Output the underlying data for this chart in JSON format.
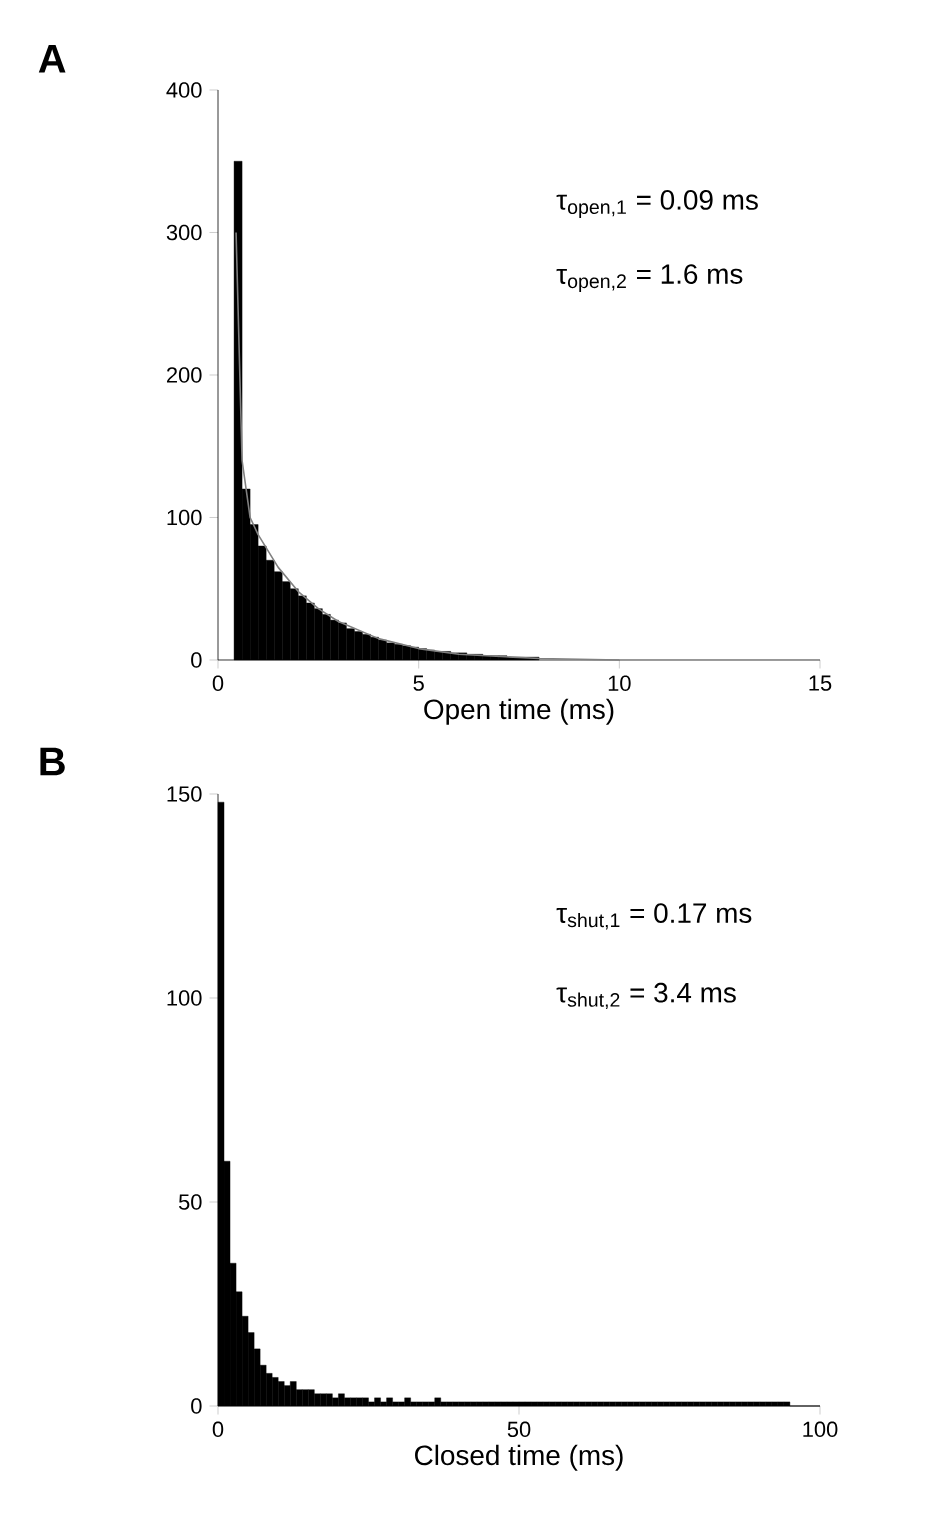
{
  "chart_data": [
    {
      "type": "histogram",
      "xlabel": "Open time (ms)",
      "xlim": [
        0,
        15
      ],
      "xticks": [
        0,
        5,
        10,
        15
      ],
      "ylim": [
        0,
        400
      ],
      "yticks": [
        0,
        100,
        200,
        300,
        400
      ],
      "annotations": [
        "A",
        "τ$_{open,1}$ = 0.09 ms",
        "τ$_{open,2}$ = 1.6 ms"
      ],
      "color": "#000000",
      "bins": [
        0.4,
        0.6,
        0.8,
        1.0,
        1.2,
        1.4,
        1.6,
        1.8,
        2.0,
        2.2,
        2.4,
        2.6,
        2.8,
        3.0,
        3.2,
        3.4,
        3.6,
        3.8,
        4.0,
        4.2,
        4.4,
        4.6,
        4.8,
        5.0,
        5.2,
        5.4,
        5.6,
        5.8,
        6.0,
        6.2,
        6.4,
        6.6,
        6.8,
        7.0,
        7.2,
        7.4,
        7.6,
        7.8,
        8.0
      ],
      "values": [
        350,
        120,
        95,
        80,
        70,
        62,
        55,
        50,
        45,
        40,
        36,
        32,
        28,
        26,
        22,
        20,
        18,
        16,
        14,
        12,
        11,
        10,
        9,
        8,
        7,
        6,
        6,
        5,
        5,
        4,
        4,
        3,
        3,
        3,
        2,
        2,
        2,
        2
      ],
      "series": [
        {
          "type": "line",
          "color": "#808080",
          "x": [
            0.45,
            0.6,
            0.8,
            1.0,
            1.5,
            2.0,
            2.5,
            3.0,
            4.0,
            5.0,
            6.0,
            8.0,
            10.0
          ],
          "values": [
            300,
            140,
            100,
            88,
            65,
            48,
            36,
            27,
            15,
            8,
            4,
            1,
            0
          ]
        }
      ]
    },
    {
      "type": "histogram",
      "xlabel": "Closed time (ms)",
      "xlim": [
        0,
        100
      ],
      "xticks": [
        0,
        50,
        100
      ],
      "ylim": [
        0,
        150
      ],
      "yticks": [
        0,
        50,
        100,
        150
      ],
      "annotations": [
        "B",
        "τ$_{shut,1}$ = 0.17 ms",
        "τ$_{shut,2}$ = 3.4 ms"
      ],
      "color": "#000000",
      "bins": [
        0,
        1,
        2,
        3,
        4,
        5,
        6,
        7,
        8,
        9,
        10,
        11,
        12,
        13,
        14,
        15,
        16,
        17,
        18,
        19,
        20,
        21,
        22,
        23,
        24,
        25,
        26,
        27,
        28,
        29,
        30,
        31,
        32,
        33,
        34,
        35,
        36,
        37,
        38,
        39,
        40,
        41,
        42,
        43,
        44,
        45,
        46,
        47,
        48,
        49,
        50,
        51,
        52,
        53,
        54,
        55,
        56,
        57,
        58,
        59,
        60,
        61,
        62,
        63,
        64,
        65,
        66,
        67,
        68,
        69,
        70,
        71,
        72,
        73,
        74,
        75,
        76,
        77,
        78,
        79,
        80,
        81,
        82,
        83,
        84,
        85,
        86,
        87,
        88,
        89,
        90,
        91,
        92,
        93,
        94,
        95,
        96,
        97,
        98,
        99,
        100
      ],
      "values": [
        148,
        60,
        35,
        28,
        22,
        18,
        14,
        10,
        8,
        7,
        6,
        5,
        6,
        4,
        4,
        4,
        3,
        3,
        3,
        2,
        3,
        2,
        2,
        2,
        2,
        1,
        2,
        1,
        2,
        1,
        1,
        2,
        1,
        1,
        1,
        1,
        2,
        1,
        1,
        1,
        1,
        1,
        1,
        1,
        1,
        1,
        1,
        1,
        1,
        1,
        1,
        1,
        1,
        1,
        1,
        1,
        1,
        1,
        1,
        1,
        1,
        1,
        1,
        1,
        1,
        1,
        1,
        1,
        1,
        1,
        1,
        1,
        1,
        1,
        1,
        1,
        1,
        1,
        1,
        1,
        1,
        1,
        1,
        1,
        1,
        1,
        1,
        1,
        1,
        1,
        1,
        1,
        1,
        1,
        1,
        0,
        0,
        0,
        0,
        0
      ]
    }
  ]
}
